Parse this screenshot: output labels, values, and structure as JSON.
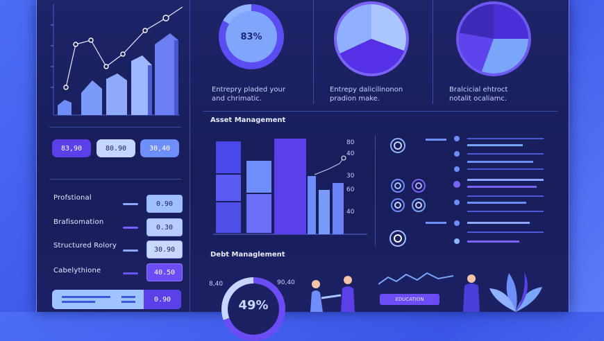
{
  "top_charts": [
    {
      "value": "83%",
      "caption_1": "Entrepry pladed your",
      "caption_2": "and chrimatic."
    },
    {
      "caption_1": "Entrepy dalicilinonon",
      "caption_2": "pradion make."
    },
    {
      "caption_1": "Bralcicial ehtroct",
      "caption_2": "notalit ocaliamc."
    }
  ],
  "stat_pills": [
    "83,90",
    "80.90",
    "30,40"
  ],
  "metrics": [
    {
      "label": "Profstional",
      "value": "0.90"
    },
    {
      "label": "Brafisomation",
      "value": "0.30"
    },
    {
      "label": "Structured Rolory",
      "value": "30.90"
    },
    {
      "label": "Cabelythione",
      "value": "40.50"
    }
  ],
  "footer_value": "0.90",
  "asset_section": {
    "title": "Asset Management",
    "axis_labels": [
      "80",
      "40",
      "30",
      "60",
      "40"
    ]
  },
  "debt_section": {
    "title": "Debt Managlement",
    "donut_value": "49%",
    "left_tick": "8,40",
    "right_tick": "90,40",
    "button_label": "EDUCATION"
  },
  "colors": {
    "accent": "#6b4cf5",
    "accent_light": "#7aa6f9",
    "panel": "#1b2163"
  }
}
